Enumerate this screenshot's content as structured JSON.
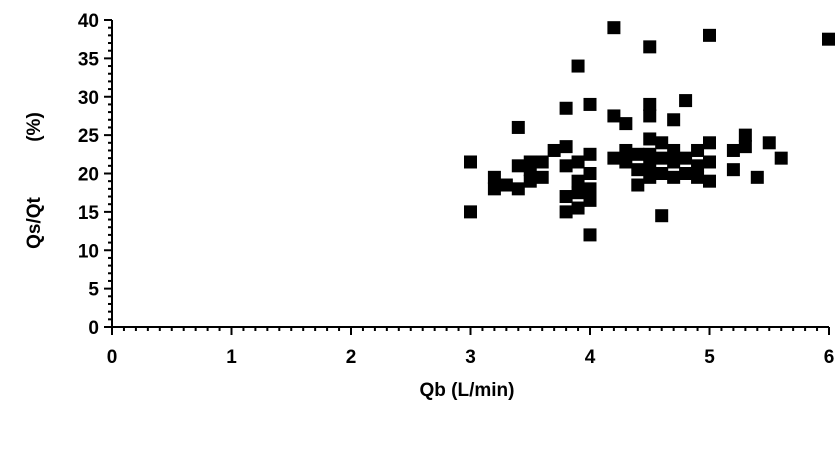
{
  "chart_data": {
    "type": "scatter",
    "xlabel": "Qb (L/min)",
    "ylabel": "Qs/Qt",
    "ylabel_unit": "(%)",
    "xlim": [
      0,
      6
    ],
    "ylim": [
      0,
      40
    ],
    "x_ticks": [
      "0",
      "1",
      "2",
      "3",
      "4",
      "5",
      "6"
    ],
    "y_ticks": [
      "0",
      "5",
      "10",
      "15",
      "20",
      "25",
      "30",
      "35",
      "40"
    ],
    "grid": false,
    "legend": "none",
    "marker": "filled-square",
    "marker_color": "#000000",
    "x": [
      3.0,
      3.0,
      3.2,
      3.2,
      3.3,
      3.4,
      3.4,
      3.4,
      3.5,
      3.5,
      3.5,
      3.6,
      3.6,
      3.7,
      3.8,
      3.8,
      3.8,
      3.8,
      3.8,
      3.9,
      3.9,
      3.9,
      3.9,
      3.9,
      4.0,
      4.0,
      4.0,
      4.0,
      4.0,
      4.0,
      4.2,
      4.2,
      4.2,
      4.3,
      4.3,
      4.3,
      4.4,
      4.4,
      4.4,
      4.5,
      4.5,
      4.5,
      4.5,
      4.5,
      4.5,
      4.5,
      4.6,
      4.6,
      4.6,
      4.6,
      4.7,
      4.7,
      4.7,
      4.7,
      4.8,
      4.8,
      4.8,
      4.9,
      4.9,
      4.9,
      5.0,
      5.0,
      5.0,
      5.0,
      5.2,
      5.2,
      5.3,
      5.3,
      5.4,
      5.5,
      5.6,
      6.0
    ],
    "y": [
      21.5,
      15.0,
      19.5,
      18.0,
      18.5,
      26.0,
      21.0,
      18.0,
      21.5,
      19.0,
      20.5,
      21.5,
      19.5,
      23.0,
      28.5,
      23.5,
      21.0,
      17.0,
      15.0,
      34.0,
      21.5,
      19.0,
      17.5,
      15.5,
      29.0,
      22.5,
      20.0,
      18.0,
      16.5,
      12.0,
      39.0,
      27.5,
      22.0,
      26.5,
      23.0,
      21.5,
      22.5,
      20.5,
      18.5,
      36.5,
      29.0,
      27.5,
      24.5,
      22.5,
      21.0,
      19.5,
      24.0,
      22.0,
      20.0,
      14.5,
      27.0,
      23.0,
      21.5,
      19.5,
      29.5,
      22.0,
      20.0,
      23.0,
      21.0,
      19.5,
      38.0,
      24.0,
      21.5,
      19.0,
      23.0,
      20.5,
      25.0,
      23.5,
      19.5,
      24.0,
      22.0,
      37.5
    ]
  }
}
